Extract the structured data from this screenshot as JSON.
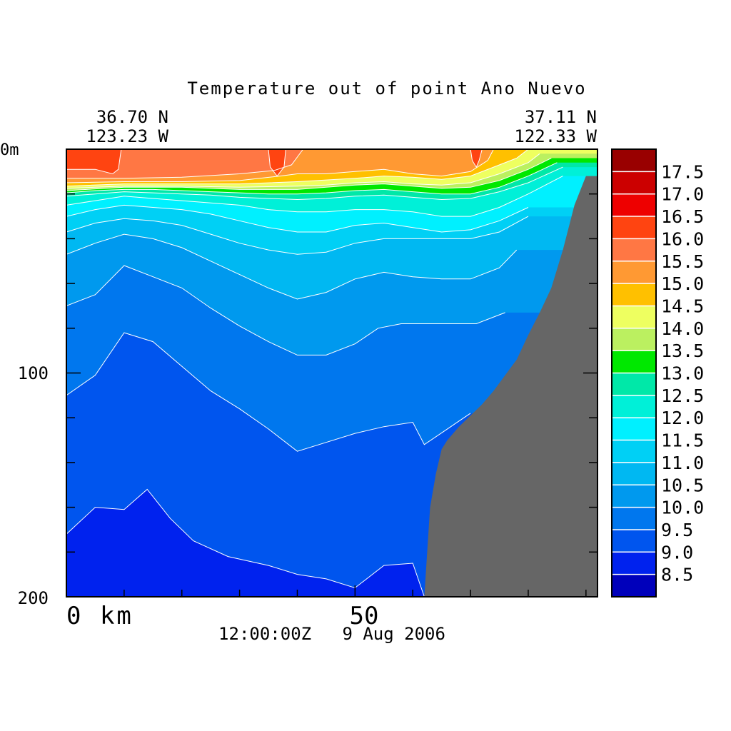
{
  "chart_data": {
    "type": "heatmap",
    "title": "Temperature out of point Ano Nuevo",
    "corner_left": {
      "lat": "36.70 N",
      "lon": "123.23 W"
    },
    "corner_right": {
      "lat": "37.11 N",
      "lon": "122.33 W"
    },
    "timestamp": "12:00:00Z   9 Aug 2006",
    "x_range": [
      0,
      92
    ],
    "y_range": [
      0,
      200
    ],
    "x_ticks": [
      {
        "value": 0,
        "label": "0 km"
      },
      {
        "value": 50,
        "label": "50"
      }
    ],
    "y_ticks": [
      {
        "value": 0,
        "label": "0m"
      },
      {
        "value": 100,
        "label": "100"
      },
      {
        "value": 200,
        "label": "200"
      }
    ],
    "colorbar": {
      "levels": [
        8.5,
        9.0,
        9.5,
        10.0,
        10.5,
        11.0,
        11.5,
        12.0,
        12.5,
        13.0,
        13.5,
        14.0,
        14.5,
        15.0,
        15.5,
        16.0,
        16.5,
        17.0,
        17.5
      ],
      "labels": [
        "8.5",
        "9.0",
        "9.5",
        "10.0",
        "10.5",
        "11.0",
        "11.5",
        "12.0",
        "12.5",
        "13.0",
        "13.5",
        "14.0",
        "14.5",
        "15.0",
        "15.5",
        "16.0",
        "16.5",
        "17.0",
        "17.5"
      ],
      "colors": [
        "#0000bb",
        "#0022ee",
        "#0055ee",
        "#0077ee",
        "#0099ee",
        "#00b8f2",
        "#00d0f5",
        "#00f0ff",
        "#00f0d8",
        "#00e8a8",
        "#00e800",
        "#bbf060",
        "#eeff60",
        "#ffc000",
        "#ff9933",
        "#ff7744",
        "#ff4411",
        "#ee0000",
        "#cc0000",
        "#990000"
      ]
    },
    "surfaces": [
      {
        "level": 9.0,
        "depth": [
          [
            0,
            172
          ],
          [
            5,
            160
          ],
          [
            10,
            161
          ],
          [
            14,
            152
          ],
          [
            18,
            165
          ],
          [
            22,
            175
          ],
          [
            28,
            182
          ],
          [
            35,
            186
          ],
          [
            40,
            190
          ],
          [
            45,
            192
          ],
          [
            50,
            196
          ],
          [
            55,
            186
          ],
          [
            60,
            185
          ],
          [
            62,
            200
          ]
        ]
      },
      {
        "level": 9.5,
        "depth": [
          [
            0,
            110
          ],
          [
            5,
            101
          ],
          [
            10,
            82
          ],
          [
            15,
            86
          ],
          [
            20,
            97
          ],
          [
            25,
            108
          ],
          [
            30,
            116
          ],
          [
            35,
            125
          ],
          [
            40,
            135
          ],
          [
            45,
            131
          ],
          [
            50,
            127
          ],
          [
            55,
            124
          ],
          [
            60,
            122
          ],
          [
            62,
            132
          ],
          [
            66,
            125
          ],
          [
            70,
            118
          ]
        ]
      },
      {
        "level": 10.0,
        "depth": [
          [
            0,
            70
          ],
          [
            5,
            65
          ],
          [
            10,
            52
          ],
          [
            15,
            57
          ],
          [
            20,
            62
          ],
          [
            25,
            71
          ],
          [
            30,
            79
          ],
          [
            35,
            86
          ],
          [
            40,
            92
          ],
          [
            45,
            92
          ],
          [
            50,
            87
          ],
          [
            54,
            80
          ],
          [
            58,
            78
          ],
          [
            62,
            78
          ],
          [
            66,
            78
          ],
          [
            71,
            78
          ],
          [
            76,
            73
          ]
        ]
      },
      {
        "level": 10.5,
        "depth": [
          [
            0,
            47
          ],
          [
            5,
            42
          ],
          [
            10,
            38
          ],
          [
            15,
            40
          ],
          [
            20,
            44
          ],
          [
            25,
            50
          ],
          [
            30,
            56
          ],
          [
            35,
            62
          ],
          [
            40,
            67
          ],
          [
            45,
            64
          ],
          [
            50,
            58
          ],
          [
            55,
            55
          ],
          [
            60,
            57
          ],
          [
            65,
            58
          ],
          [
            70,
            58
          ],
          [
            75,
            53
          ],
          [
            78,
            45
          ]
        ]
      },
      {
        "level": 11.0,
        "depth": [
          [
            0,
            37
          ],
          [
            5,
            33
          ],
          [
            10,
            31
          ],
          [
            15,
            32
          ],
          [
            20,
            34
          ],
          [
            25,
            38
          ],
          [
            30,
            42
          ],
          [
            35,
            45
          ],
          [
            40,
            47
          ],
          [
            45,
            46
          ],
          [
            50,
            42
          ],
          [
            55,
            40
          ],
          [
            60,
            40
          ],
          [
            65,
            40
          ],
          [
            70,
            40
          ],
          [
            75,
            37
          ],
          [
            80,
            30
          ]
        ]
      },
      {
        "level": 11.5,
        "depth": [
          [
            0,
            30
          ],
          [
            5,
            27
          ],
          [
            10,
            25
          ],
          [
            15,
            26
          ],
          [
            20,
            27
          ],
          [
            25,
            29
          ],
          [
            30,
            32
          ],
          [
            35,
            35
          ],
          [
            40,
            37
          ],
          [
            45,
            37
          ],
          [
            50,
            34
          ],
          [
            55,
            33
          ],
          [
            60,
            35
          ],
          [
            65,
            37
          ],
          [
            70,
            36
          ],
          [
            75,
            32
          ],
          [
            80,
            26
          ]
        ]
      },
      {
        "level": 12.0,
        "depth": [
          [
            0,
            25
          ],
          [
            5,
            23
          ],
          [
            10,
            21
          ],
          [
            15,
            22
          ],
          [
            20,
            23
          ],
          [
            25,
            24
          ],
          [
            30,
            25
          ],
          [
            35,
            27
          ],
          [
            40,
            28
          ],
          [
            45,
            28
          ],
          [
            50,
            27
          ],
          [
            55,
            27
          ],
          [
            60,
            28
          ],
          [
            65,
            30
          ],
          [
            70,
            30
          ],
          [
            75,
            26
          ],
          [
            80,
            20
          ],
          [
            86,
            12
          ]
        ]
      },
      {
        "level": 12.5,
        "depth": [
          [
            0,
            21
          ],
          [
            5,
            20
          ],
          [
            10,
            19
          ],
          [
            15,
            19.5
          ],
          [
            20,
            20
          ],
          [
            25,
            20.5
          ],
          [
            30,
            21.5
          ],
          [
            35,
            22
          ],
          [
            40,
            22.5
          ],
          [
            45,
            22
          ],
          [
            50,
            21
          ],
          [
            55,
            20.5
          ],
          [
            60,
            21.5
          ],
          [
            65,
            22.5
          ],
          [
            70,
            22
          ],
          [
            75,
            19
          ],
          [
            80,
            15
          ],
          [
            86,
            8
          ]
        ]
      },
      {
        "level": 13.0,
        "depth": [
          [
            0,
            19.5
          ],
          [
            5,
            18.5
          ],
          [
            10,
            18
          ],
          [
            15,
            18
          ],
          [
            20,
            18.5
          ],
          [
            25,
            19
          ],
          [
            30,
            19.5
          ],
          [
            35,
            20
          ],
          [
            40,
            20
          ],
          [
            45,
            19.5
          ],
          [
            50,
            18.5
          ],
          [
            55,
            18
          ],
          [
            60,
            19
          ],
          [
            65,
            20
          ],
          [
            70,
            20
          ],
          [
            75,
            17
          ],
          [
            80,
            12
          ],
          [
            85,
            6
          ]
        ]
      },
      {
        "level": 13.5,
        "depth": [
          [
            0,
            18.5
          ],
          [
            10,
            17
          ],
          [
            20,
            17
          ],
          [
            30,
            18
          ],
          [
            40,
            18
          ],
          [
            45,
            17
          ],
          [
            50,
            16
          ],
          [
            55,
            15.5
          ],
          [
            60,
            16.5
          ],
          [
            65,
            17.5
          ],
          [
            70,
            17
          ],
          [
            75,
            14
          ],
          [
            80,
            9
          ],
          [
            84,
            4
          ]
        ]
      },
      {
        "level": 14.0,
        "depth": [
          [
            0,
            17.5
          ],
          [
            10,
            16.5
          ],
          [
            20,
            16.5
          ],
          [
            30,
            17
          ],
          [
            40,
            16.5
          ],
          [
            45,
            16
          ],
          [
            50,
            15
          ],
          [
            55,
            14.5
          ],
          [
            60,
            15.5
          ],
          [
            65,
            16
          ],
          [
            70,
            15
          ],
          [
            75,
            11
          ],
          [
            80,
            6
          ],
          [
            82,
            2
          ]
        ]
      },
      {
        "level": 14.5,
        "depth": [
          [
            0,
            16.5
          ],
          [
            10,
            15.5
          ],
          [
            20,
            15.5
          ],
          [
            30,
            15.5
          ],
          [
            40,
            14.5
          ],
          [
            50,
            13
          ],
          [
            55,
            12
          ],
          [
            60,
            12.5
          ],
          [
            65,
            13.5
          ],
          [
            70,
            12
          ],
          [
            74,
            8
          ],
          [
            78,
            4
          ],
          [
            80,
            0
          ]
        ]
      },
      {
        "level": 15.0,
        "depth": [
          [
            0,
            15
          ],
          [
            10,
            14.5
          ],
          [
            20,
            14.5
          ],
          [
            30,
            14
          ],
          [
            37,
            12
          ],
          [
            40,
            11
          ],
          [
            45,
            11
          ],
          [
            50,
            10
          ],
          [
            55,
            9
          ],
          [
            60,
            11
          ],
          [
            65,
            12
          ],
          [
            70,
            10
          ],
          [
            73,
            5
          ],
          [
            74,
            0
          ]
        ]
      },
      {
        "level": 15.5,
        "depth": [
          [
            0,
            13
          ],
          [
            10,
            13
          ],
          [
            20,
            12.5
          ],
          [
            30,
            11
          ],
          [
            36,
            9.5
          ],
          [
            39,
            7
          ],
          [
            41,
            0
          ]
        ]
      },
      {
        "level": 16.0,
        "depth": [
          [
            0,
            9
          ],
          [
            5,
            9
          ],
          [
            8,
            11
          ],
          [
            9,
            9
          ],
          [
            9.5,
            0
          ]
        ]
      },
      {
        "level": 16.0,
        "depth": [
          [
            35,
            0
          ],
          [
            35.3,
            8
          ],
          [
            36.5,
            12
          ],
          [
            37.7,
            8
          ],
          [
            38,
            0
          ]
        ]
      },
      {
        "level": 16.0,
        "depth": [
          [
            70,
            0
          ],
          [
            70.3,
            5
          ],
          [
            71,
            8
          ],
          [
            71.5,
            5
          ],
          [
            72,
            0
          ]
        ]
      }
    ],
    "land": {
      "color": "#666666",
      "bottom": [
        [
          90,
          12
        ],
        [
          88,
          25
        ],
        [
          86,
          45
        ],
        [
          84,
          62
        ],
        [
          82,
          73
        ],
        [
          80,
          83
        ],
        [
          78,
          94
        ],
        [
          76,
          101
        ],
        [
          74,
          108
        ],
        [
          72,
          114
        ],
        [
          70,
          119
        ],
        [
          68,
          124
        ],
        [
          66,
          130
        ],
        [
          65,
          134
        ],
        [
          64,
          145
        ],
        [
          63,
          160
        ],
        [
          62.5,
          180
        ],
        [
          62,
          200
        ]
      ]
    }
  }
}
